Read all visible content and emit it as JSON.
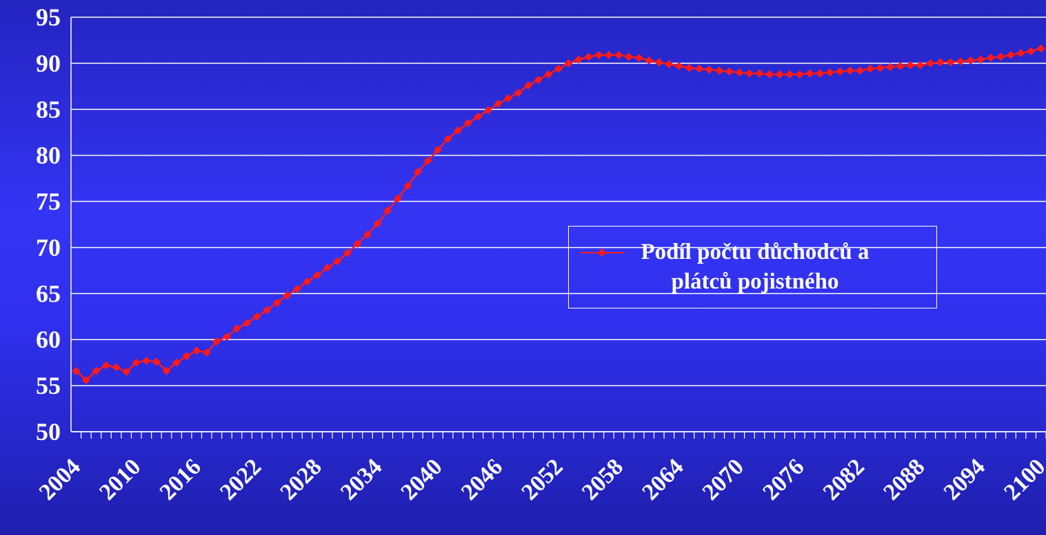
{
  "chart_data": {
    "type": "line",
    "categories": [
      2004,
      null,
      null,
      null,
      null,
      null,
      2010,
      null,
      null,
      null,
      null,
      null,
      2016,
      null,
      null,
      null,
      null,
      null,
      2022,
      null,
      null,
      null,
      null,
      null,
      2028,
      null,
      null,
      null,
      null,
      null,
      2034,
      null,
      null,
      null,
      null,
      null,
      2040,
      null,
      null,
      null,
      null,
      null,
      2046,
      null,
      null,
      null,
      null,
      null,
      2052,
      null,
      null,
      null,
      null,
      null,
      2058,
      null,
      null,
      null,
      null,
      null,
      2064,
      null,
      null,
      null,
      null,
      null,
      2070,
      null,
      null,
      null,
      null,
      null,
      2076,
      null,
      null,
      null,
      null,
      null,
      2082,
      null,
      null,
      null,
      null,
      null,
      2088,
      null,
      null,
      null,
      null,
      null,
      2094,
      null,
      null,
      null,
      null,
      null,
      2100
    ],
    "series": [
      {
        "name": "Podíl počtu důchodců a plátců pojistného",
        "color": "#ff1a1a",
        "values": [
          56.6,
          55.6,
          56.6,
          57.2,
          57.0,
          56.5,
          57.5,
          57.7,
          57.6,
          56.6,
          57.5,
          58.2,
          58.8,
          58.6,
          59.8,
          60.3,
          61.2,
          61.8,
          62.5,
          63.2,
          64.0,
          64.8,
          65.5,
          66.3,
          67.0,
          67.8,
          68.5,
          69.4,
          70.4,
          71.4,
          72.6,
          74.0,
          75.3,
          76.7,
          78.2,
          79.4,
          80.6,
          81.8,
          82.7,
          83.5,
          84.2,
          84.9,
          85.6,
          86.2,
          86.8,
          87.6,
          88.2,
          88.8,
          89.4,
          90.0,
          90.4,
          90.7,
          90.9,
          90.9,
          90.9,
          90.7,
          90.6,
          90.3,
          90.1,
          89.9,
          89.7,
          89.5,
          89.4,
          89.3,
          89.2,
          89.1,
          89.0,
          88.9,
          88.9,
          88.8,
          88.8,
          88.8,
          88.8,
          88.9,
          88.9,
          89.0,
          89.1,
          89.2,
          89.2,
          89.4,
          89.5,
          89.6,
          89.7,
          89.8,
          89.8,
          90.0,
          90.1,
          90.1,
          90.2,
          90.3,
          90.4,
          90.6,
          90.7,
          90.9,
          91.1,
          91.3,
          91.6
        ]
      }
    ],
    "ylim": [
      50,
      95
    ],
    "yticks": [
      50,
      55,
      60,
      65,
      70,
      75,
      80,
      85,
      90,
      95
    ],
    "grid": true
  }
}
